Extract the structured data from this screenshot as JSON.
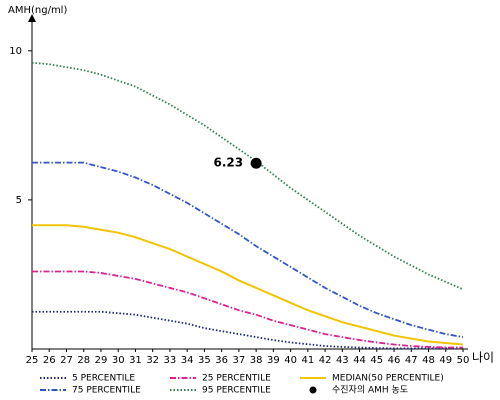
{
  "chart_data": {
    "type": "line",
    "y_label": "AMH(ng/ml)",
    "x_label": "나이",
    "x": [
      25,
      26,
      27,
      28,
      29,
      30,
      31,
      32,
      33,
      34,
      35,
      36,
      37,
      38,
      39,
      40,
      41,
      42,
      43,
      44,
      45,
      46,
      47,
      48,
      49,
      50
    ],
    "xlim": [
      25,
      50
    ],
    "xticks": [
      25,
      26,
      27,
      28,
      29,
      30,
      31,
      32,
      33,
      34,
      35,
      36,
      37,
      38,
      39,
      40,
      41,
      42,
      43,
      44,
      45,
      46,
      47,
      48,
      49,
      50
    ],
    "ylim": [
      0,
      11.2
    ],
    "yticks": [
      5,
      10
    ],
    "series": [
      {
        "name": "5 PERCENTILE",
        "color": "#1a237e",
        "dash": "dot",
        "values": [
          1.25,
          1.25,
          1.25,
          1.25,
          1.25,
          1.2,
          1.15,
          1.05,
          0.95,
          0.85,
          0.7,
          0.6,
          0.5,
          0.4,
          0.3,
          0.22,
          0.16,
          0.1,
          0.07,
          0.05,
          0.03,
          0.02,
          0.02,
          0.02,
          0.02,
          0.02
        ]
      },
      {
        "name": "25 PERCENTILE",
        "color": "#e0208f",
        "dash": "dashdot",
        "values": [
          2.6,
          2.6,
          2.6,
          2.6,
          2.55,
          2.45,
          2.35,
          2.2,
          2.05,
          1.9,
          1.7,
          1.5,
          1.3,
          1.15,
          0.95,
          0.8,
          0.65,
          0.5,
          0.4,
          0.3,
          0.22,
          0.15,
          0.1,
          0.07,
          0.05,
          0.05
        ]
      },
      {
        "name": "MEDIAN(50 PERCENTILE)",
        "color": "#f0c400",
        "dash": "solid",
        "values": [
          4.15,
          4.15,
          4.15,
          4.1,
          4.0,
          3.9,
          3.75,
          3.55,
          3.35,
          3.1,
          2.85,
          2.6,
          2.3,
          2.05,
          1.8,
          1.55,
          1.3,
          1.1,
          0.9,
          0.75,
          0.6,
          0.45,
          0.35,
          0.25,
          0.2,
          0.15
        ]
      },
      {
        "name": "75 PERCENTILE",
        "color": "#3355cc",
        "dash": "dashdot",
        "values": [
          6.25,
          6.25,
          6.25,
          6.25,
          6.1,
          5.95,
          5.75,
          5.5,
          5.2,
          4.9,
          4.55,
          4.2,
          3.85,
          3.45,
          3.1,
          2.75,
          2.4,
          2.05,
          1.75,
          1.45,
          1.2,
          1.0,
          0.8,
          0.65,
          0.5,
          0.4
        ]
      },
      {
        "name": "95 PERCENTILE",
        "color": "#2e7d4e",
        "dash": "dot",
        "values": [
          9.6,
          9.55,
          9.45,
          9.35,
          9.2,
          9.0,
          8.8,
          8.5,
          8.2,
          7.85,
          7.5,
          7.1,
          6.7,
          6.3,
          5.85,
          5.4,
          5.0,
          4.6,
          4.2,
          3.8,
          3.45,
          3.1,
          2.8,
          2.5,
          2.25,
          2.0
        ]
      }
    ],
    "point": {
      "name": "수진자의 AMH 농도",
      "x": 38,
      "y": 6.23,
      "label": "6.23",
      "color": "#000000"
    }
  }
}
